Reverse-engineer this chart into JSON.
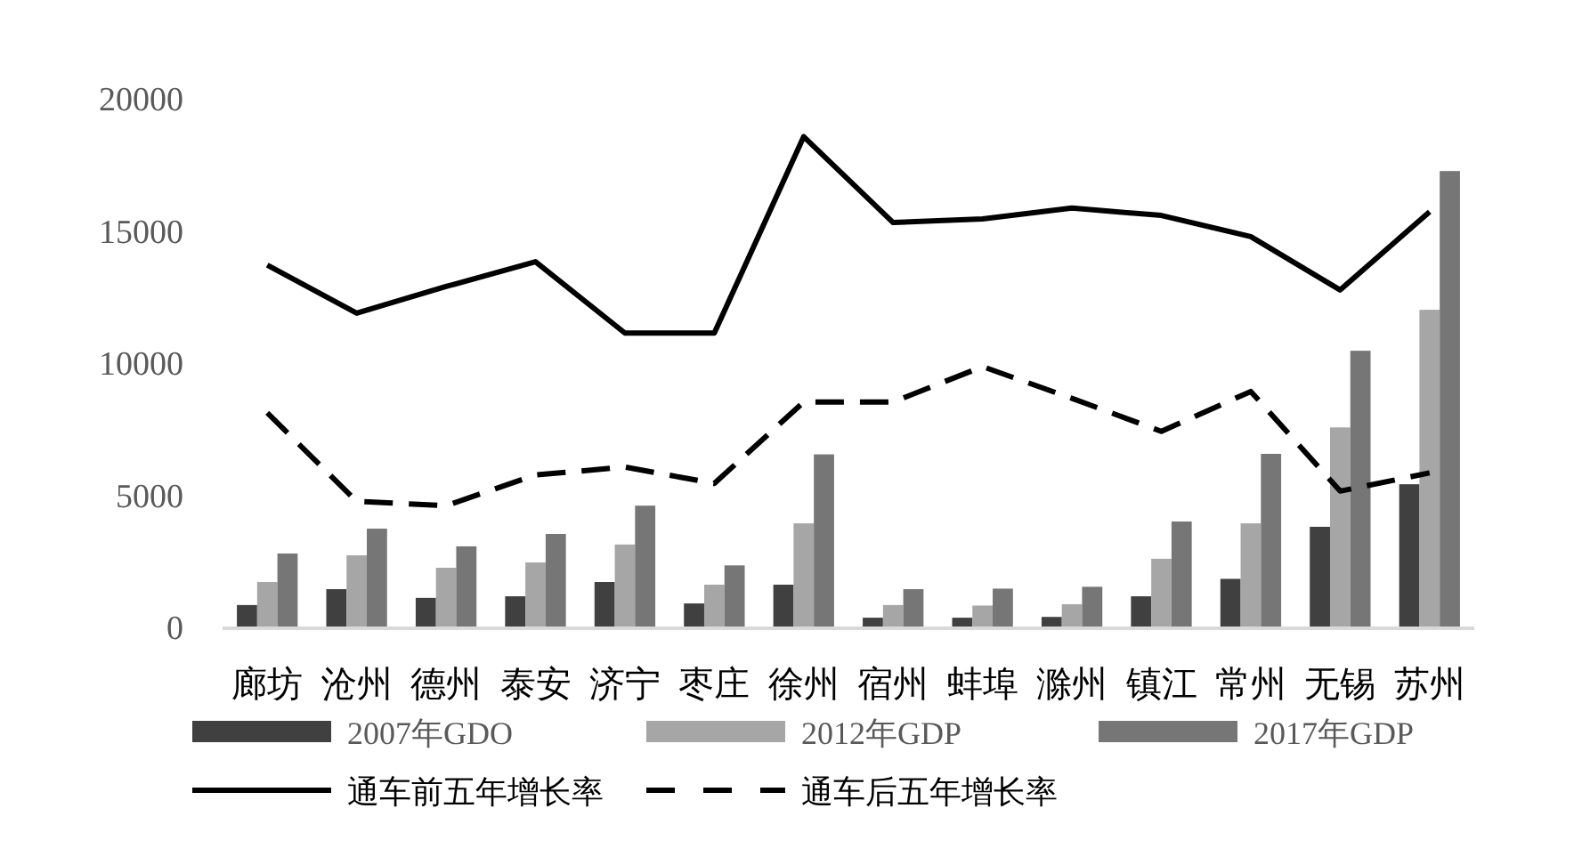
{
  "chart_data": {
    "type": "bar",
    "categories": [
      "廊坊",
      "沧州",
      "德州",
      "泰安",
      "济宁",
      "枣庄",
      "徐州",
      "宿州",
      "蚌埠",
      "滁州",
      "镇江",
      "常州",
      "无锡",
      "苏州"
    ],
    "ylim": [
      0,
      20000
    ],
    "yticks": [
      0,
      5000,
      10000,
      15000,
      20000
    ],
    "grid": false,
    "legend": "bottom",
    "series": [
      {
        "name": "2007年GDO",
        "color": "#404040",
        "values": [
          880,
          1480,
          1150,
          1210,
          1750,
          940,
          1650,
          400,
          400,
          430,
          1210,
          1870,
          3840,
          5450
        ]
      },
      {
        "name": "2012年GDP",
        "color": "#a6a6a6",
        "values": [
          1750,
          2760,
          2290,
          2490,
          3170,
          1650,
          3970,
          880,
          860,
          910,
          2630,
          3970,
          7600,
          12050
        ]
      },
      {
        "name": "2017年GDP",
        "color": "#767676",
        "values": [
          2830,
          3770,
          3100,
          3570,
          4640,
          2380,
          6580,
          1480,
          1500,
          1570,
          4040,
          6600,
          10500,
          17300
        ]
      },
      {
        "name": "通车前五年增长率",
        "type": "line",
        "line_style": "solid",
        "color": "#000000",
        "values": [
          13740,
          11920,
          12930,
          13870,
          11170,
          11170,
          18600,
          15350,
          15490,
          15900,
          15620,
          14820,
          12800,
          15760
        ]
      },
      {
        "name": "通车后五年增长率",
        "type": "line",
        "line_style": "dashed",
        "color": "#000000",
        "values": [
          8150,
          4800,
          4640,
          5800,
          6100,
          5480,
          8560,
          8560,
          9900,
          8700,
          7450,
          8960,
          5190,
          5880
        ]
      }
    ]
  }
}
